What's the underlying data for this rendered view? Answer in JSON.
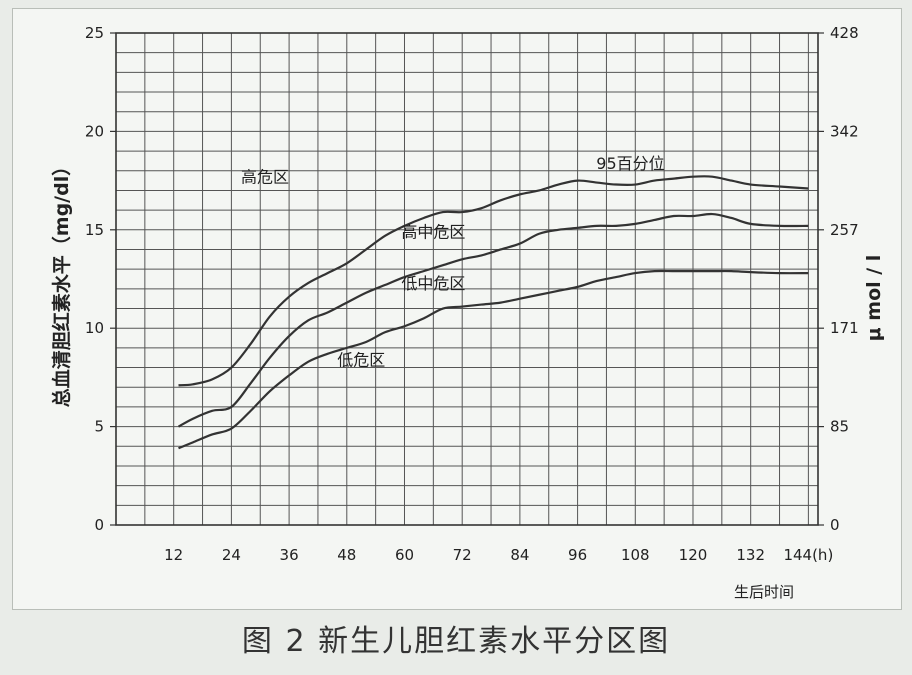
{
  "caption": "图 2   新生儿胆红素水平分区图",
  "chart_data": {
    "type": "line",
    "title": "",
    "xlabel": "生后时间",
    "ylabel": "总血清胆红素水平（mg/dl）",
    "ylabel_right": "μ mol / l",
    "xlim": [
      0,
      146
    ],
    "ylim": [
      0,
      25
    ],
    "x_ticks": [
      "12",
      "24",
      "36",
      "48",
      "60",
      "72",
      "84",
      "96",
      "108",
      "120",
      "132",
      "144(h)"
    ],
    "x_tick_values": [
      12,
      24,
      36,
      48,
      60,
      72,
      84,
      96,
      108,
      120,
      132,
      144
    ],
    "y_ticks": [
      "0",
      "5",
      "10",
      "15",
      "20",
      "25"
    ],
    "y_tick_values": [
      0,
      5,
      10,
      15,
      20,
      25
    ],
    "y2_ticks": [
      "0",
      "85",
      "171",
      "257",
      "342",
      "428"
    ],
    "grid": true,
    "grid_x_step_h": 6,
    "grid_y_step": 1,
    "series": [
      {
        "name": "95百分位",
        "x": [
          13,
          16,
          20,
          24,
          28,
          32,
          36,
          40,
          44,
          48,
          52,
          56,
          60,
          64,
          68,
          72,
          76,
          80,
          84,
          88,
          92,
          96,
          100,
          104,
          108,
          112,
          116,
          120,
          124,
          128,
          132,
          138,
          144
        ],
        "values": [
          7.1,
          7.15,
          7.4,
          8.0,
          9.2,
          10.6,
          11.6,
          12.3,
          12.8,
          13.3,
          14.0,
          14.7,
          15.2,
          15.6,
          15.9,
          15.9,
          16.1,
          16.5,
          16.8,
          17.0,
          17.3,
          17.5,
          17.4,
          17.3,
          17.3,
          17.5,
          17.6,
          17.7,
          17.7,
          17.5,
          17.3,
          17.2,
          17.1
        ]
      },
      {
        "name": "",
        "x": [
          13,
          16,
          20,
          24,
          28,
          32,
          36,
          40,
          44,
          48,
          52,
          56,
          60,
          64,
          68,
          72,
          76,
          80,
          84,
          88,
          92,
          96,
          100,
          104,
          108,
          112,
          116,
          120,
          124,
          128,
          132,
          138,
          144
        ],
        "values": [
          5.0,
          5.4,
          5.8,
          6.0,
          7.2,
          8.5,
          9.6,
          10.4,
          10.8,
          11.3,
          11.8,
          12.2,
          12.6,
          12.9,
          13.2,
          13.5,
          13.7,
          14.0,
          14.3,
          14.8,
          15.0,
          15.1,
          15.2,
          15.2,
          15.3,
          15.5,
          15.7,
          15.7,
          15.8,
          15.6,
          15.3,
          15.2,
          15.2
        ]
      },
      {
        "name": "",
        "x": [
          13,
          16,
          20,
          24,
          28,
          32,
          36,
          40,
          44,
          48,
          52,
          56,
          60,
          64,
          68,
          72,
          76,
          80,
          84,
          88,
          92,
          96,
          100,
          104,
          108,
          112,
          116,
          120,
          124,
          128,
          132,
          138,
          144
        ],
        "values": [
          3.9,
          4.2,
          4.6,
          4.9,
          5.8,
          6.8,
          7.6,
          8.3,
          8.7,
          9.0,
          9.3,
          9.8,
          10.1,
          10.5,
          11.0,
          11.1,
          11.2,
          11.3,
          11.5,
          11.7,
          11.9,
          12.1,
          12.4,
          12.6,
          12.8,
          12.9,
          12.9,
          12.9,
          12.9,
          12.9,
          12.85,
          12.8,
          12.8
        ]
      }
    ],
    "annotations": [
      {
        "text": "高危区",
        "x": 31,
        "y": 17.4
      },
      {
        "text": "95百分位",
        "x": 107,
        "y": 18.1
      },
      {
        "text": "高中危区",
        "x": 66,
        "y": 14.6
      },
      {
        "text": "低中危区",
        "x": 66,
        "y": 12.0
      },
      {
        "text": "低危区",
        "x": 51,
        "y": 8.1
      }
    ]
  }
}
